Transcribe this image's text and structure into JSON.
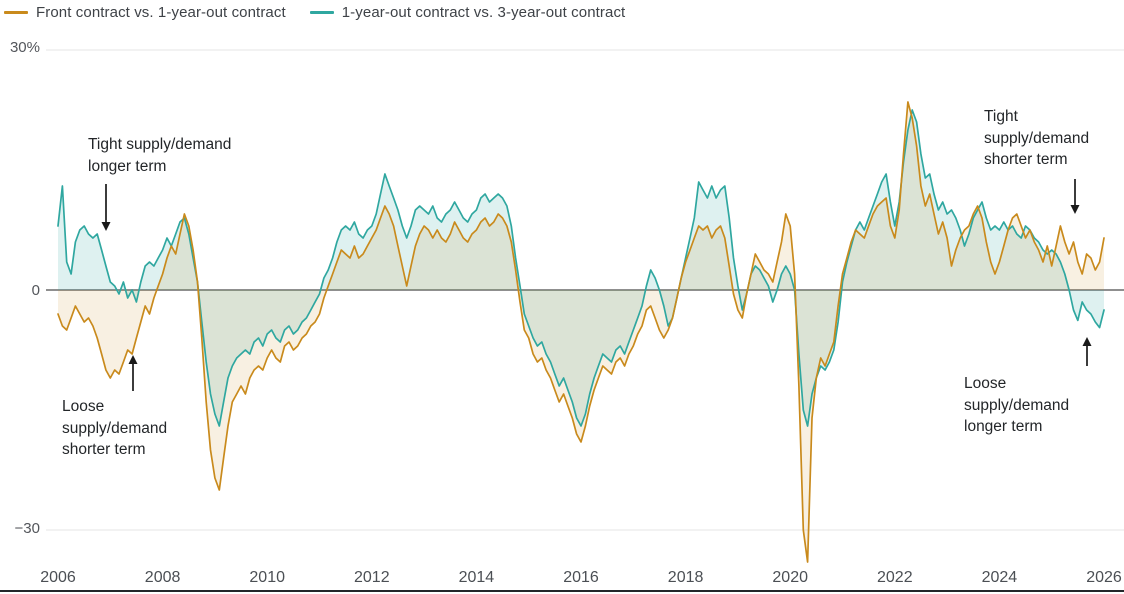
{
  "legend": {
    "items": [
      {
        "label": "Front contract vs. 1-year-out contract",
        "color": "#c98a1c"
      },
      {
        "label": "1-year-out contract vs. 3-year-out contract",
        "color": "#2fa7a0"
      }
    ]
  },
  "y_axis": {
    "top_label": "30%",
    "zero_label": "0",
    "bottom_label": "−30"
  },
  "x_axis": {
    "ticks": [
      "2006",
      "2008",
      "2010",
      "2012",
      "2014",
      "2016",
      "2018",
      "2020",
      "2022",
      "2024",
      "2026"
    ]
  },
  "annotations": [
    {
      "id": "tight-longer",
      "text": "Tight supply/demand\nlonger term",
      "arrow": "down"
    },
    {
      "id": "loose-shorter",
      "text": "Loose\nsupply/demand\nshorter term",
      "arrow": "up"
    },
    {
      "id": "tight-shorter",
      "text": "Tight\nsupply/demand\nshorter term",
      "arrow": "down"
    },
    {
      "id": "loose-longer",
      "text": "Loose\nsupply/demand\nlonger term",
      "arrow": "up"
    }
  ],
  "chart_data": {
    "type": "line",
    "x_unit": "year",
    "y_unit": "%",
    "x_start": 2006,
    "x_step_years": 0.0833333,
    "x_ticks": [
      2006,
      2008,
      2010,
      2012,
      2014,
      2016,
      2018,
      2020,
      2022,
      2024,
      2026
    ],
    "ylim": [
      -36,
      30
    ],
    "grid_y": [
      30,
      0,
      -30
    ],
    "legend_position": "top-left",
    "series": [
      {
        "name": "Front contract vs. 1-year-out contract",
        "color": "#c98a1c",
        "fill_opacity": 0.13,
        "values": [
          -3,
          -4.5,
          -5,
          -3.5,
          -2,
          -3,
          -4,
          -3.5,
          -4.5,
          -6,
          -8,
          -10,
          -11,
          -10,
          -10.5,
          -9,
          -7.5,
          -8,
          -6,
          -4,
          -2,
          -3,
          -1,
          0.5,
          2,
          4,
          5.5,
          4.5,
          7,
          9.5,
          8,
          5,
          1,
          -6,
          -14,
          -20,
          -23.5,
          -25,
          -21,
          -17,
          -14,
          -13,
          -12,
          -13,
          -11,
          -10,
          -9.5,
          -10,
          -8.5,
          -7.5,
          -8.5,
          -9,
          -7,
          -6.5,
          -7.5,
          -7,
          -6,
          -5.5,
          -4.5,
          -4,
          -3,
          -1,
          0.5,
          2,
          3.5,
          5,
          4.5,
          4,
          5.5,
          4,
          4.5,
          5.5,
          6.5,
          7.5,
          9,
          10.5,
          9.5,
          8,
          5.5,
          3,
          0.5,
          3,
          5.5,
          7,
          8,
          7.5,
          6.5,
          7.5,
          6.5,
          6,
          7,
          8.5,
          7.5,
          6.5,
          6,
          7,
          7.5,
          8.5,
          9,
          8,
          8.5,
          9.5,
          9,
          8,
          6,
          2.5,
          -1.5,
          -5,
          -6,
          -8,
          -9,
          -8.5,
          -10,
          -11,
          -12.5,
          -14,
          -13,
          -14.5,
          -16,
          -18,
          -19,
          -17,
          -14.5,
          -12.5,
          -11,
          -9.5,
          -10,
          -10.5,
          -9,
          -8.5,
          -9.5,
          -8,
          -7,
          -5.5,
          -4.5,
          -2.5,
          -2,
          -3.5,
          -5,
          -6,
          -5,
          -3.5,
          -1,
          1.5,
          3.5,
          5,
          6.5,
          8,
          7.5,
          8,
          6.5,
          7.5,
          8,
          6.5,
          3,
          -0.5,
          -2.5,
          -3.5,
          -0.5,
          2,
          4.5,
          3.5,
          2.5,
          2,
          1,
          3.5,
          6,
          9.5,
          8,
          2,
          -12,
          -30,
          -34,
          -16,
          -11,
          -8.5,
          -9.5,
          -8,
          -6.5,
          -2,
          2,
          4,
          6,
          7.5,
          7,
          6.5,
          8,
          9.5,
          10.5,
          11,
          11.5,
          8,
          6.5,
          10,
          17,
          23.5,
          21.5,
          18,
          13,
          10.5,
          12,
          9.5,
          7,
          8.5,
          6.5,
          3,
          5,
          6.5,
          7.5,
          8,
          9.5,
          10.5,
          9,
          6,
          3.5,
          2,
          3.5,
          5.5,
          7.5,
          9,
          9.5,
          8,
          6.5,
          7.5,
          6,
          5,
          3.5,
          5.5,
          3,
          5.5,
          8,
          6,
          4.5,
          6,
          3.5,
          2,
          4.5,
          4,
          2.5,
          3.5,
          6.5
        ]
      },
      {
        "name": "1-year-out contract vs. 3-year-out contract",
        "color": "#2fa7a0",
        "fill_opacity": 0.16,
        "values": [
          8,
          13,
          3.5,
          2,
          6,
          7.5,
          8,
          7,
          6.5,
          7,
          5,
          3,
          1,
          0.5,
          -0.5,
          1,
          -1,
          0,
          -1.5,
          1,
          3,
          3.5,
          3,
          4,
          5,
          6.5,
          5.5,
          7,
          8.5,
          9,
          7,
          4,
          1,
          -4,
          -9,
          -13,
          -15.5,
          -17,
          -14,
          -11,
          -9.5,
          -8.5,
          -8,
          -7.5,
          -8,
          -6.5,
          -6,
          -7,
          -5.5,
          -5,
          -6,
          -6.5,
          -5,
          -4.5,
          -5.5,
          -5,
          -4,
          -3.5,
          -2.5,
          -1.5,
          -0.5,
          1.5,
          2.5,
          4,
          6,
          7.5,
          8,
          7.5,
          8.5,
          7,
          6.5,
          7.5,
          8,
          9.5,
          12,
          14.5,
          13,
          11.5,
          10,
          8,
          6.5,
          8,
          10,
          10.5,
          10,
          9.5,
          10.5,
          9,
          8.5,
          9.5,
          10,
          11,
          10,
          9,
          8.5,
          9.5,
          10,
          11.5,
          12,
          11,
          11.5,
          12,
          11.5,
          10.5,
          8,
          4,
          0.5,
          -3,
          -4.5,
          -6,
          -7,
          -6.5,
          -8,
          -9,
          -10.5,
          -12,
          -11,
          -12.5,
          -14,
          -16,
          -17,
          -15.5,
          -13,
          -11,
          -9.5,
          -8,
          -8.5,
          -9,
          -7.5,
          -7,
          -8,
          -6.5,
          -5,
          -3.5,
          -2,
          0.5,
          2.5,
          1.5,
          0,
          -2,
          -4.5,
          -3.5,
          -1,
          1.5,
          4,
          6.5,
          9,
          13.5,
          12.5,
          11.5,
          13,
          11.5,
          12.5,
          13,
          9,
          4,
          0.5,
          -2.5,
          -0.5,
          2,
          3,
          2.5,
          1.5,
          0.5,
          -1.5,
          0,
          2,
          3,
          2,
          0,
          -8,
          -15,
          -17,
          -13,
          -11,
          -9.5,
          -10,
          -9,
          -7.5,
          -4,
          1,
          3.5,
          5.5,
          7.5,
          8.5,
          7.5,
          9,
          10.5,
          12,
          13.5,
          14.5,
          11,
          8,
          11,
          16,
          20,
          22.5,
          21,
          17,
          14,
          14.5,
          12,
          10,
          11,
          9.5,
          10,
          9,
          7.5,
          5.5,
          7,
          9,
          10,
          11,
          9,
          7.5,
          8,
          7.5,
          8.5,
          7.5,
          8,
          7,
          6.5,
          8,
          7.5,
          6.5,
          6,
          5,
          4.5,
          5,
          4.5,
          3.5,
          2,
          0,
          -2.5,
          -3.8,
          -1.5,
          -2.5,
          -3,
          -4,
          -4.7,
          -2.5
        ]
      }
    ]
  },
  "colors": {
    "zero_line": "#8f8f8f",
    "grid_line": "#e4e4e4",
    "bottom_axis": "#23262a",
    "arrow": "#1a1a1a",
    "tick_text": "#4b4f54",
    "legend_text": "#3e4247"
  }
}
